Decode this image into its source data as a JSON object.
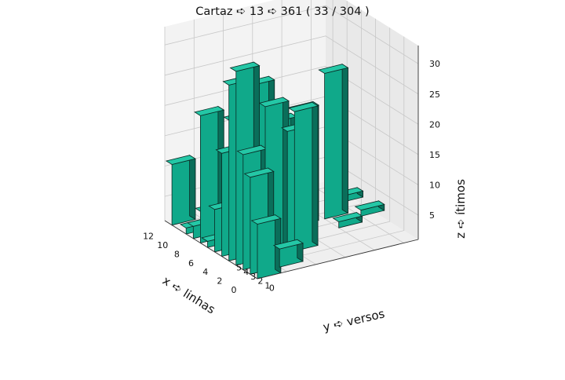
{
  "title": "Cartaz ➪ 13 ➪ 361 ( 33 / 304 )",
  "chart_data": {
    "type": "bar3d",
    "title": "Cartaz ➪ 13 ➪ 361 ( 33 / 304 )",
    "xlabel": "x ➪ linhas",
    "ylabel": "y ➪ versos",
    "zlabel": "z ➪ ítimos",
    "x_ticks": [
      "0",
      "2",
      "4",
      "6",
      "8",
      "10",
      "12"
    ],
    "y_ticks": [
      "0",
      "1",
      "2",
      "3",
      "4",
      "5"
    ],
    "z_ticks": [
      "5",
      "10",
      "15",
      "20",
      "25",
      "30"
    ],
    "xlim": [
      0,
      13
    ],
    "ylim": [
      0,
      5.5
    ],
    "zlim": [
      1,
      33
    ],
    "grid": true,
    "bar_color": "#1abc9c",
    "bars": [
      {
        "x": 0,
        "y": 0,
        "z": 10
      },
      {
        "x": 1,
        "y": 0,
        "z": 17
      },
      {
        "x": 2,
        "y": 0,
        "z": 20
      },
      {
        "x": 3,
        "y": 0,
        "z": 33
      },
      {
        "x": 4,
        "y": 0,
        "z": 30
      },
      {
        "x": 5,
        "y": 0,
        "z": 18
      },
      {
        "x": 6,
        "y": 0,
        "z": 8
      },
      {
        "x": 7,
        "y": 0,
        "z": 2
      },
      {
        "x": 8,
        "y": 0,
        "z": 22
      },
      {
        "x": 9,
        "y": 0,
        "z": 3
      },
      {
        "x": 10,
        "y": 0,
        "z": 2
      },
      {
        "x": 12,
        "y": 0,
        "z": 11
      },
      {
        "x": 1,
        "y": 1,
        "z": 4
      },
      {
        "x": 3,
        "y": 1,
        "z": 26
      },
      {
        "x": 3,
        "y": 2,
        "z": 24
      },
      {
        "x": 4,
        "y": 1,
        "z": 3
      },
      {
        "x": 5,
        "y": 1,
        "z": 28
      },
      {
        "x": 6,
        "y": 1,
        "z": 25
      },
      {
        "x": 7,
        "y": 1,
        "z": 4
      },
      {
        "x": 8,
        "y": 1,
        "z": 20
      },
      {
        "x": 9,
        "y": 1,
        "z": 2
      },
      {
        "x": 12,
        "y": 1,
        "z": 2
      },
      {
        "x": 4,
        "y": 2,
        "z": 20
      },
      {
        "x": 6,
        "y": 2,
        "z": 20
      },
      {
        "x": 8,
        "y": 2,
        "z": 2
      },
      {
        "x": 7,
        "y": 3,
        "z": 20
      },
      {
        "x": 5,
        "y": 4,
        "z": 2
      },
      {
        "x": 7,
        "y": 4,
        "z": 25
      },
      {
        "x": 6,
        "y": 5,
        "z": 2
      },
      {
        "x": 9,
        "y": 5,
        "z": 2
      }
    ]
  }
}
